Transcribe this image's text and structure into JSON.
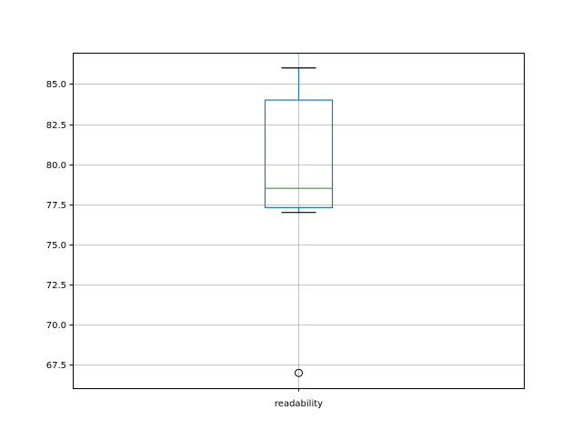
{
  "chart_data": {
    "type": "box",
    "categories": [
      "readability"
    ],
    "boxes": [
      {
        "name": "readability",
        "whisker_low": 77.0,
        "q1": 77.3,
        "median": 78.5,
        "q3": 84.0,
        "whisker_high": 86.0,
        "outliers": [
          67.0
        ]
      }
    ],
    "ylim": [
      66.05,
      86.95
    ],
    "yticks": [
      67.5,
      70.0,
      72.5,
      75.0,
      77.5,
      80.0,
      82.5,
      85.0
    ],
    "ytick_labels": [
      "67.5",
      "70.0",
      "72.5",
      "75.0",
      "77.5",
      "80.0",
      "82.5",
      "85.0"
    ],
    "xlabel": "",
    "ylabel": "",
    "title": "",
    "grid": true,
    "colors": {
      "box": "#1f77b4",
      "median": "#2ca02c",
      "caps": "#000000",
      "grid": "#b0b0b0"
    }
  }
}
